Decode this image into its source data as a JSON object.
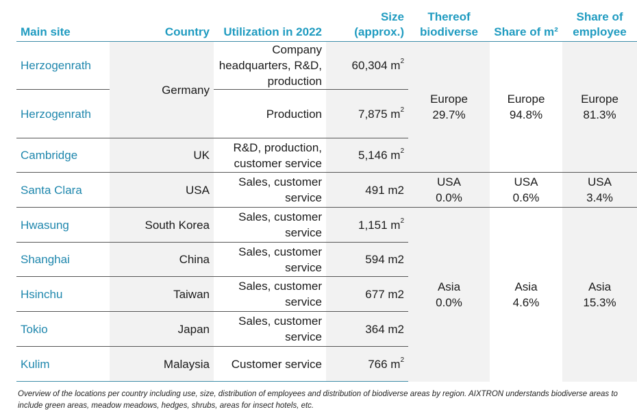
{
  "headers": {
    "main_site": "Main site",
    "country": "Country",
    "utilization": "Utilization in 2022",
    "size": "Size (approx.)",
    "biodiverse": "Thereof biodiverse",
    "share_m2": "Share of m²",
    "share_employee": "Share of employee"
  },
  "rows": [
    {
      "site": "Herzogenrath",
      "use": "Company headquarters, R&D, production",
      "size": "60,304 m",
      "sup": "2"
    },
    {
      "site": "Herzogenrath",
      "use": "Production",
      "size": "7,875 m",
      "sup": "2"
    },
    {
      "site": "Cambridge",
      "country": "UK",
      "use": "R&D, production, customer service",
      "size": "5,146 m",
      "sup": "2"
    },
    {
      "site": "Santa Clara",
      "country": "USA",
      "use": "Sales, customer service",
      "size": "491 m2"
    },
    {
      "site": "Hwasung",
      "country": "South Korea",
      "use": "Sales, customer service",
      "size": "1,151 m",
      "sup": "2"
    },
    {
      "site": "Shanghai",
      "country": "China",
      "use": "Sales, customer service",
      "size": "594 m2"
    },
    {
      "site": "Hsinchu",
      "country": "Taiwan",
      "use": "Sales, customer service",
      "size": "677 m2"
    },
    {
      "site": "Tokio",
      "country": "Japan",
      "use": "Sales, customer service",
      "size": "364 m2"
    },
    {
      "site": "Kulim",
      "country": "Malaysia",
      "use": "Customer service",
      "size": "766 m",
      "sup": "2"
    }
  ],
  "germany_country": "Germany",
  "regions": {
    "europe": {
      "bio_label": "Europe",
      "bio": "29.7%",
      "m2_label": "Europe",
      "m2": "94.8%",
      "emp_label": "Europe",
      "emp": "81.3%"
    },
    "usa": {
      "bio_label": "USA",
      "bio": "0.0%",
      "m2_label": "USA",
      "m2": "0.6%",
      "emp_label": "USA",
      "emp": "3.4%"
    },
    "asia": {
      "bio_label": "Asia",
      "bio": "0.0%",
      "m2_label": "Asia",
      "m2": "4.6%",
      "emp_label": "Asia",
      "emp": "15.3%"
    }
  },
  "caption": "Overview of the locations per country including use, size, distribution of employees and distribution of biodiverse areas by region. AIXTRON understands biodiverse areas to include green areas, meadow meadows, hedges, shrubs, areas for insect hotels, etc.",
  "colors": {
    "header_text": "#1f9bc0",
    "site_text": "#1f87ad",
    "shaded_column": "#f2f2f2",
    "rule": "#3d8ca8"
  }
}
